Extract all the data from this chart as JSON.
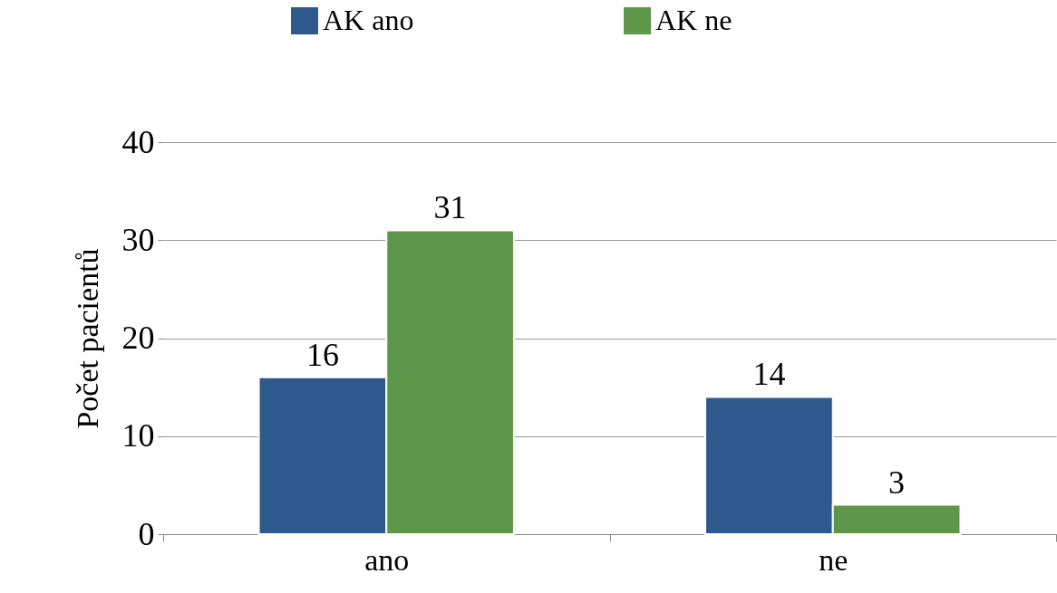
{
  "chart_data": {
    "type": "bar",
    "ylabel": "Počet pacientů",
    "categories": [
      "ano",
      "ne"
    ],
    "series": [
      {
        "name": "AK ano",
        "color": "#2e598c",
        "values": [
          16,
          14
        ]
      },
      {
        "name": "AK ne",
        "color": "#5e9749",
        "values": [
          31,
          3
        ]
      }
    ],
    "ylim": [
      0,
      40
    ],
    "yticks": [
      0,
      10,
      20,
      30,
      40
    ],
    "grid": "y",
    "legend": "top",
    "data_labels": true
  }
}
